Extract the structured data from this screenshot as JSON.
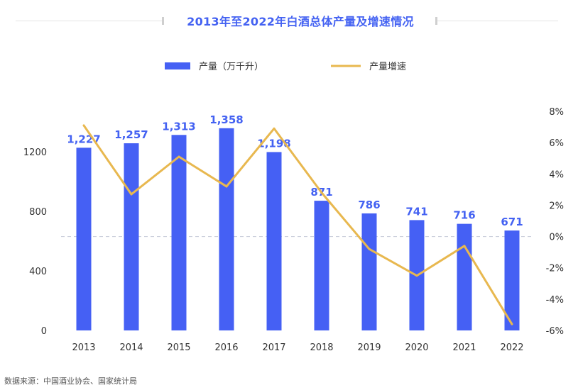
{
  "title": "2013年至2022年白酒总体产量及增速情况",
  "source": "数据来源：中国酒业协会、国家统计局",
  "colors": {
    "bar": "#4560f4",
    "line": "#e8b84f",
    "title": "#4462f2",
    "axis_text": "#333333",
    "zero_line": "#c5c9d8"
  },
  "chart_data": {
    "type": "bar",
    "title": "2013年至2022年白酒总体产量及增速情况",
    "categories": [
      "2013",
      "2014",
      "2015",
      "2016",
      "2017",
      "2018",
      "2019",
      "2020",
      "2021",
      "2022"
    ],
    "series": [
      {
        "name": "产量（万千升）",
        "type": "bar",
        "axis": "left",
        "values": [
          1227,
          1257,
          1313,
          1358,
          1198,
          871,
          786,
          741,
          716,
          671
        ],
        "labels": [
          "1,227",
          "1,257",
          "1,313",
          "1,358",
          "1,198",
          "871",
          "786",
          "741",
          "716",
          "671"
        ]
      },
      {
        "name": "产量增速",
        "type": "line",
        "axis": "right",
        "values": [
          7.1,
          2.7,
          5.1,
          3.2,
          6.9,
          2.8,
          -0.8,
          -2.5,
          -0.6,
          -5.6
        ]
      }
    ],
    "y_left": {
      "ticks": [
        0,
        400,
        800,
        1200
      ],
      "tick_labels": [
        "0",
        "400",
        "800",
        "1200"
      ],
      "range": [
        0,
        1462
      ]
    },
    "y_right": {
      "ticks": [
        -6,
        -4,
        -2,
        0,
        2,
        4,
        6,
        8
      ],
      "tick_labels": [
        "-6%",
        "-4%",
        "-2%",
        "0%",
        "2%",
        "4%",
        "6%",
        "8%"
      ],
      "range": [
        -6,
        8
      ]
    },
    "legend_position": "top-center",
    "grid": false
  }
}
